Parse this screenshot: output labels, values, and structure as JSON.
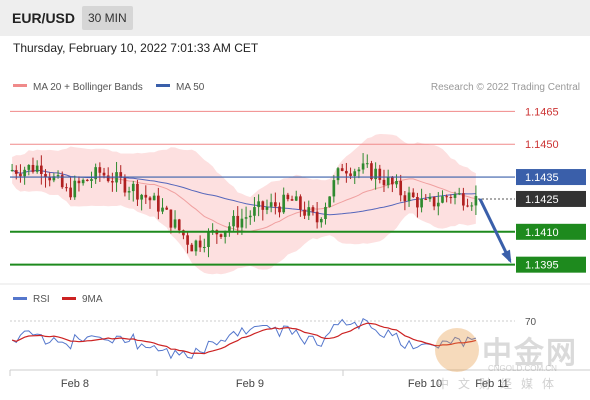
{
  "header": {
    "symbol": "EUR/USD",
    "interval": "30 MIN"
  },
  "datetime": "Thursday, February 10, 2022 7:01:33 AM CET",
  "legend": {
    "ma20": "MA 20 + Bollinger Bands",
    "ma50": "MA 50",
    "copyright": "Research © 2022 Trading Central"
  },
  "rsi_legend": {
    "rsi": "RSI",
    "ma9": "9MA",
    "level": "70"
  },
  "watermark": {
    "brand": "中金网",
    "url": "CNGOLD.COM.CN",
    "tagline": "中文财经媒体"
  },
  "colors": {
    "resistance": "#f08a8a",
    "current": "#3a5faa",
    "support": "#1e8a1e",
    "bollinger": "#fcd6d6",
    "ma20": "#f0a0a0",
    "ma50": "#5566bb",
    "bull": "#2f8a2f",
    "bear": "#b02020",
    "price_badge": "#333333"
  },
  "chart_data": {
    "type": "candlestick",
    "x_labels": [
      "Feb 8",
      "Feb 9",
      "Feb 10",
      "Feb 11"
    ],
    "ylim": [
      1.1388,
      1.1472
    ],
    "levels": [
      {
        "value": "1.1465",
        "kind": "resistance"
      },
      {
        "value": "1.1450",
        "kind": "resistance"
      },
      {
        "value": "1.1435",
        "kind": "pivot"
      },
      {
        "value": "1.1425",
        "kind": "current"
      },
      {
        "value": "1.1410",
        "kind": "support"
      },
      {
        "value": "1.1395",
        "kind": "support"
      }
    ],
    "forecast": {
      "from": 1.1425,
      "to": 1.1395,
      "direction": "down"
    },
    "rsi_levels": [
      70
    ],
    "rsi_ylim": [
      25,
      75
    ]
  }
}
